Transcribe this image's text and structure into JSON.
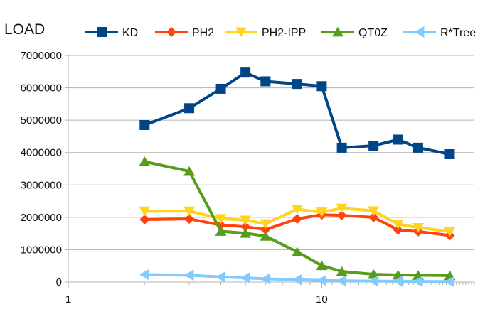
{
  "chart_data": {
    "type": "line",
    "title": "LOAD",
    "xlabel": "",
    "ylabel": "",
    "x_scale": "log",
    "xlim": [
      1,
      40
    ],
    "ylim": [
      0,
      7000000
    ],
    "grid": "horizontal",
    "legend_position": "top",
    "x_ticks": [
      "1",
      "10"
    ],
    "y_ticks": [
      "0",
      "1000000",
      "2000000",
      "3000000",
      "4000000",
      "5000000",
      "6000000",
      "7000000"
    ],
    "series": [
      {
        "name": "KD",
        "color": "#004586",
        "marker": "square",
        "points": [
          [
            2,
            4850000
          ],
          [
            3,
            5370000
          ],
          [
            4,
            5970000
          ],
          [
            5,
            6470000
          ],
          [
            6,
            6200000
          ],
          [
            8,
            6120000
          ],
          [
            10,
            6050000
          ],
          [
            12,
            4150000
          ],
          [
            16,
            4210000
          ],
          [
            20,
            4400000
          ],
          [
            24,
            4150000
          ],
          [
            32,
            3950000
          ]
        ]
      },
      {
        "name": "PH2",
        "color": "#ff420e",
        "marker": "diamond",
        "points": [
          [
            2,
            1930000
          ],
          [
            3,
            1950000
          ],
          [
            4,
            1760000
          ],
          [
            5,
            1710000
          ],
          [
            6,
            1620000
          ],
          [
            8,
            1950000
          ],
          [
            10,
            2080000
          ],
          [
            12,
            2060000
          ],
          [
            16,
            2000000
          ],
          [
            20,
            1610000
          ],
          [
            24,
            1560000
          ],
          [
            32,
            1440000
          ]
        ]
      },
      {
        "name": "PH2-IPP",
        "color": "#ffd320",
        "marker": "triangle-down",
        "points": [
          [
            2,
            2190000
          ],
          [
            3,
            2190000
          ],
          [
            4,
            1960000
          ],
          [
            5,
            1910000
          ],
          [
            6,
            1800000
          ],
          [
            8,
            2250000
          ],
          [
            10,
            2160000
          ],
          [
            12,
            2280000
          ],
          [
            16,
            2200000
          ],
          [
            20,
            1790000
          ],
          [
            24,
            1680000
          ],
          [
            32,
            1560000
          ]
        ]
      },
      {
        "name": "QT0Z",
        "color": "#579d1c",
        "marker": "triangle-up",
        "points": [
          [
            2,
            3720000
          ],
          [
            3,
            3420000
          ],
          [
            4,
            1570000
          ],
          [
            5,
            1510000
          ],
          [
            6,
            1420000
          ],
          [
            8,
            930000
          ],
          [
            10,
            510000
          ],
          [
            12,
            330000
          ],
          [
            16,
            240000
          ],
          [
            20,
            220000
          ],
          [
            24,
            210000
          ],
          [
            32,
            200000
          ]
        ]
      },
      {
        "name": "R*Tree",
        "color": "#83caff",
        "marker": "triangle-left",
        "points": [
          [
            2,
            230000
          ],
          [
            3,
            210000
          ],
          [
            4,
            160000
          ],
          [
            5,
            130000
          ],
          [
            6,
            100000
          ],
          [
            8,
            70000
          ],
          [
            10,
            50000
          ],
          [
            12,
            40000
          ],
          [
            16,
            30000
          ],
          [
            20,
            25000
          ],
          [
            24,
            20000
          ],
          [
            32,
            15000
          ]
        ]
      }
    ]
  }
}
